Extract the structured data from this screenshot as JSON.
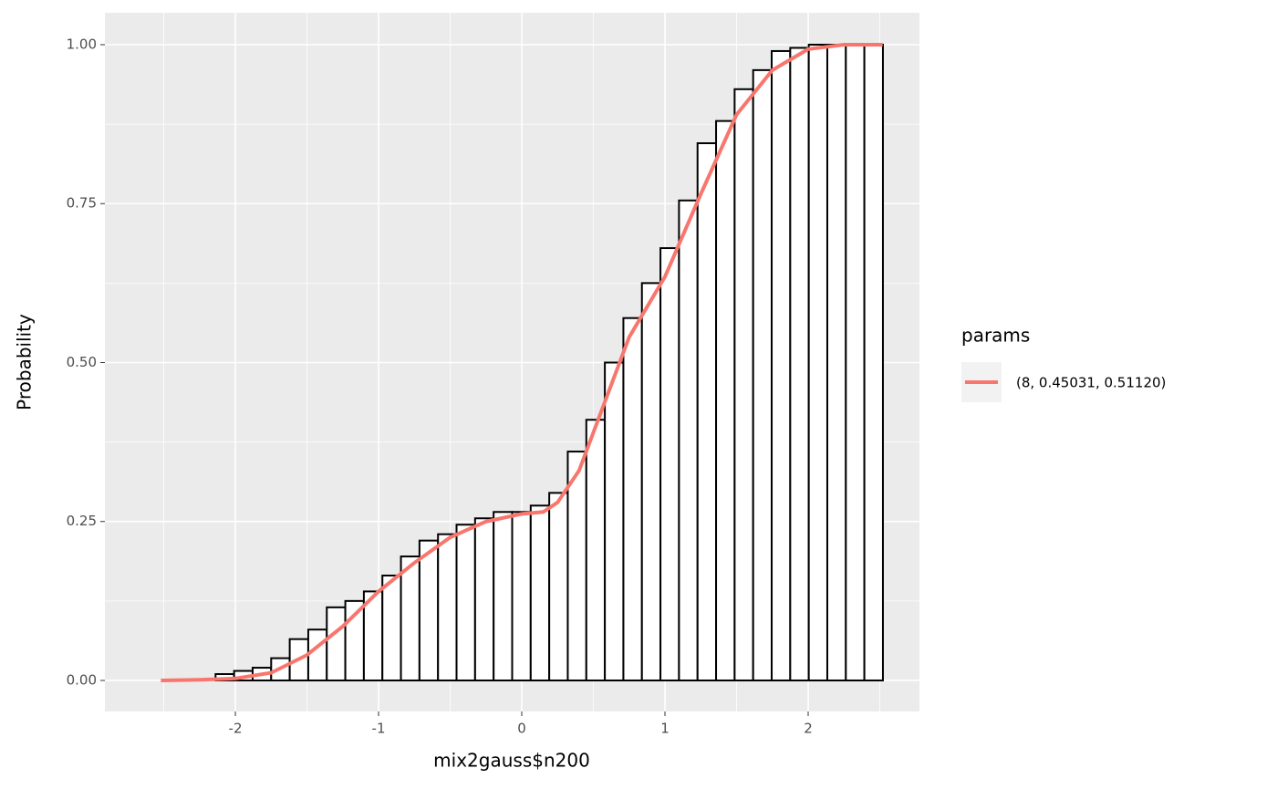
{
  "chart_data": {
    "type": "histogram",
    "x_label": "mix2gauss$n200",
    "y_label": "Probability",
    "bins": [
      -2.656,
      -2.5266,
      -2.3971,
      -2.2677,
      -2.1382,
      -2.0088,
      -1.8793,
      -1.7499,
      -1.6204,
      -1.491,
      -1.3615,
      -1.2321,
      -1.1026,
      -0.9732,
      -0.8437,
      -0.7143,
      -0.5848,
      -0.4554,
      -0.3259,
      -0.1965,
      -0.067,
      0.0624,
      0.1919,
      0.3213,
      0.4508,
      0.5802,
      0.7097,
      0.8391,
      0.9686,
      1.098,
      1.2275,
      1.3569,
      1.4864,
      1.6158,
      1.7453,
      1.8747,
      2.0042,
      2.1336,
      2.2631,
      2.3925,
      2.522
    ],
    "values": [
      0,
      0,
      0,
      0,
      0.01,
      0.015,
      0.02,
      0.035,
      0.065,
      0.08,
      0.115,
      0.125,
      0.14,
      0.165,
      0.195,
      0.22,
      0.23,
      0.245,
      0.255,
      0.265,
      0.265,
      0.275,
      0.295,
      0.36,
      0.41,
      0.5,
      0.57,
      0.625,
      0.68,
      0.755,
      0.845,
      0.88,
      0.93,
      0.96,
      0.99,
      0.995,
      1,
      1,
      1,
      1
    ],
    "bar_fill": "#ffffff",
    "bar_edge": "#000000",
    "legend_title": "params",
    "series": [
      {
        "name": "(8, 0.45031, 0.51120)",
        "color": "#F8766D",
        "x": [
          -2.52,
          -2.25,
          -2.0,
          -1.75,
          -1.5,
          -1.25,
          -1.0,
          -0.75,
          -0.5,
          -0.25,
          0,
          0.15,
          0.25,
          0.4,
          0.5,
          0.6,
          0.75,
          1.0,
          1.25,
          1.5,
          1.75,
          2.0,
          2.25,
          2.52
        ],
        "values": [
          0,
          0.001,
          0.003,
          0.012,
          0.04,
          0.085,
          0.14,
          0.185,
          0.225,
          0.25,
          0.262,
          0.265,
          0.28,
          0.33,
          0.39,
          0.45,
          0.54,
          0.635,
          0.765,
          0.89,
          0.96,
          0.993,
          1.0,
          1.0
        ]
      }
    ],
    "xlim": [
      -2.911,
      2.777
    ],
    "ylim": [
      -0.0488,
      1.0502
    ],
    "xticks": [
      -2,
      -1,
      0,
      1,
      2
    ],
    "yticks": [
      {
        "value": 0,
        "label": "0.00"
      },
      {
        "value": 0.25,
        "label": "0.25"
      },
      {
        "value": 0.5,
        "label": "0.50"
      },
      {
        "value": 0.75,
        "label": "0.75"
      },
      {
        "value": 1,
        "label": "1.00"
      }
    ],
    "grid": true,
    "legend": "right"
  }
}
